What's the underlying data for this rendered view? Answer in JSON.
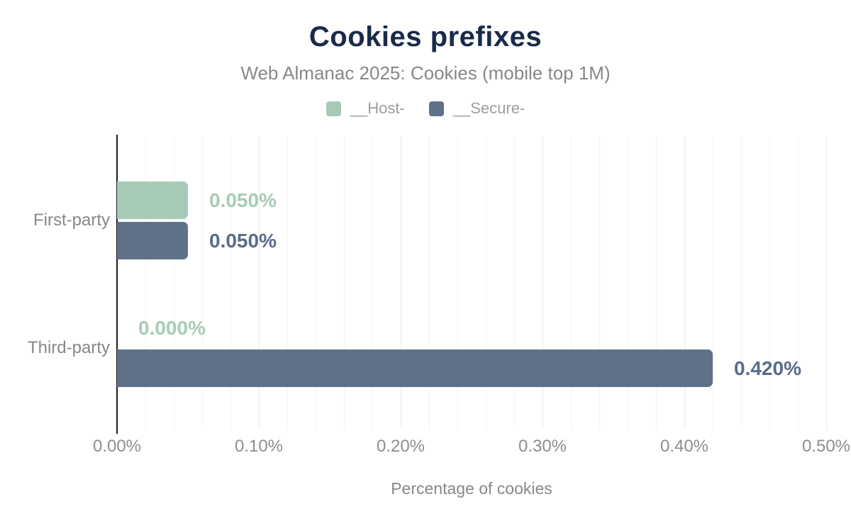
{
  "chart_data": {
    "type": "bar",
    "orientation": "horizontal",
    "title": "Cookies prefixes",
    "subtitle": "Web Almanac 2025: Cookies (mobile top 1M)",
    "xlabel": "Percentage of cookies",
    "unit": "%",
    "xlim": [
      0,
      0.5
    ],
    "grid": {
      "show": true,
      "minor_step": 0.02,
      "major_step": 0.1
    },
    "legend_position": "top",
    "categories": [
      "First-party",
      "Third-party"
    ],
    "series": [
      {
        "name": "__Host-",
        "color": "#a7cab7",
        "label_color": "#a7ccb8",
        "values": [
          0.05,
          0.0
        ],
        "value_labels": [
          "0.050%",
          "0.000%"
        ]
      },
      {
        "name": "__Secure-",
        "color": "#5f7189",
        "label_color": "#596c8a",
        "values": [
          0.05,
          0.42
        ],
        "value_labels": [
          "0.050%",
          "0.420%"
        ]
      }
    ],
    "x_ticks": [
      {
        "value": 0.0,
        "label": "0.00%"
      },
      {
        "value": 0.1,
        "label": "0.10%"
      },
      {
        "value": 0.2,
        "label": "0.20%"
      },
      {
        "value": 0.3,
        "label": "0.30%"
      },
      {
        "value": 0.4,
        "label": "0.40%"
      },
      {
        "value": 0.5,
        "label": "0.50%"
      }
    ]
  },
  "theme": {
    "title_color": "#1a2b49",
    "subtitle_color": "#85888b",
    "legend_text_color": "#9b9ea1",
    "category_color": "#85888b",
    "tick_color": "#8b8e91",
    "axis_title_color": "#85888b",
    "axis_line_color": "#1d1d1d",
    "grid_minor_color": "#f4f4f4",
    "grid_major_color": "#e9e9e9",
    "background": "#ffffff"
  }
}
